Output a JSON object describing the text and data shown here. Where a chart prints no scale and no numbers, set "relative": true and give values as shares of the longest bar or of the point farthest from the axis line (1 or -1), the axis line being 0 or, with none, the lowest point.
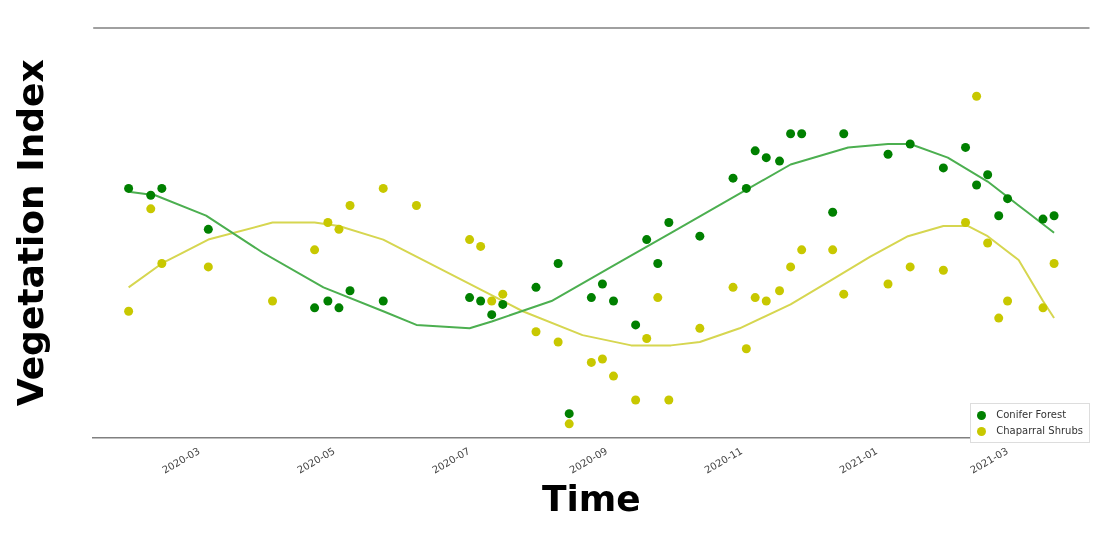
{
  "chart_data": {
    "type": "scatter",
    "xlabel": "Time",
    "ylabel": "Vegetation Index",
    "relative": true,
    "xlim": [
      "2020-01-13",
      "2021-04-07"
    ],
    "xticks": [
      "2020-03",
      "2020-05",
      "2020-07",
      "2020-09",
      "2020-11",
      "2021-01",
      "2021-03"
    ],
    "legend": "bottom right",
    "grid": false,
    "marker": "circle",
    "series": [
      {
        "name": "Conifer Forest",
        "color": "#008000",
        "x": [
          "2020-01-29",
          "2020-02-08",
          "2020-02-13",
          "2020-03-05",
          "2020-04-22",
          "2020-04-28",
          "2020-05-03",
          "2020-05-08",
          "2020-05-23",
          "2020-07-01",
          "2020-07-06",
          "2020-07-11",
          "2020-07-16",
          "2020-07-31",
          "2020-08-10",
          "2020-08-15",
          "2020-08-25",
          "2020-08-30",
          "2020-09-04",
          "2020-09-14",
          "2020-09-19",
          "2020-09-24",
          "2020-09-29",
          "2020-10-13",
          "2020-10-28",
          "2020-11-03",
          "2020-11-07",
          "2020-11-12",
          "2020-11-18",
          "2020-11-23",
          "2020-11-28",
          "2020-12-12",
          "2020-12-17",
          "2021-01-06",
          "2021-01-16",
          "2021-01-31",
          "2021-02-10",
          "2021-02-15",
          "2021-02-20",
          "2021-02-25",
          "2021-03-01",
          "2021-03-17",
          "2021-03-22"
        ],
        "values": [
          0.73,
          0.71,
          0.73,
          0.61,
          0.38,
          0.4,
          0.38,
          0.43,
          0.4,
          0.41,
          0.4,
          0.36,
          0.39,
          0.44,
          0.51,
          0.07,
          0.41,
          0.45,
          0.4,
          0.33,
          0.58,
          0.51,
          0.63,
          0.59,
          0.76,
          0.73,
          0.84,
          0.82,
          0.81,
          0.89,
          0.89,
          0.66,
          0.89,
          0.83,
          0.86,
          0.79,
          0.85,
          0.74,
          0.77,
          0.65,
          0.7,
          0.64,
          0.65
        ]
      },
      {
        "name": "Chaparral Shrubs",
        "color": "#c8c800",
        "x": [
          "2020-01-29",
          "2020-02-08",
          "2020-02-13",
          "2020-03-05",
          "2020-04-03",
          "2020-04-22",
          "2020-04-28",
          "2020-05-03",
          "2020-05-08",
          "2020-05-23",
          "2020-06-07",
          "2020-07-01",
          "2020-07-06",
          "2020-07-11",
          "2020-07-16",
          "2020-07-31",
          "2020-08-10",
          "2020-08-15",
          "2020-08-25",
          "2020-08-30",
          "2020-09-04",
          "2020-09-14",
          "2020-09-19",
          "2020-09-24",
          "2020-09-29",
          "2020-10-13",
          "2020-10-28",
          "2020-11-03",
          "2020-11-07",
          "2020-11-12",
          "2020-11-18",
          "2020-11-23",
          "2020-11-28",
          "2020-12-12",
          "2020-12-17",
          "2021-01-06",
          "2021-01-16",
          "2021-01-31",
          "2021-02-10",
          "2021-02-15",
          "2021-02-20",
          "2021-02-25",
          "2021-03-01",
          "2021-03-17",
          "2021-03-22"
        ],
        "values": [
          0.37,
          0.67,
          0.51,
          0.5,
          0.4,
          0.55,
          0.63,
          0.61,
          0.68,
          0.73,
          0.68,
          0.58,
          0.56,
          0.4,
          0.42,
          0.31,
          0.28,
          0.04,
          0.22,
          0.23,
          0.18,
          0.11,
          0.29,
          0.41,
          0.11,
          0.32,
          0.44,
          0.26,
          0.41,
          0.4,
          0.43,
          0.5,
          0.55,
          0.55,
          0.42,
          0.45,
          0.5,
          0.49,
          0.63,
          1,
          0.57,
          0.35,
          0.4,
          0.38,
          0.51
        ]
      },
      {
        "type": "line",
        "color": "#4caf50",
        "marker": "none",
        "x": [
          "2020-01-29",
          "2020-02-10",
          "2020-03-04",
          "2020-03-30",
          "2020-04-26",
          "2020-05-23",
          "2020-06-07",
          "2020-07-01",
          "2020-07-11",
          "2020-08-07",
          "2020-09-03",
          "2020-09-30",
          "2020-10-27",
          "2020-11-23",
          "2020-12-19",
          "2021-01-06",
          "2021-01-16",
          "2021-02-02",
          "2021-02-20",
          "2021-03-10",
          "2021-03-22"
        ],
        "values": [
          0.72,
          0.71,
          0.65,
          0.54,
          0.44,
          0.37,
          0.33,
          0.32,
          0.34,
          0.4,
          0.5,
          0.6,
          0.7,
          0.8,
          0.85,
          0.86,
          0.86,
          0.82,
          0.75,
          0.66,
          0.6
        ]
      },
      {
        "type": "line",
        "color": "#d6d650",
        "marker": "none",
        "x": [
          "2020-01-29",
          "2020-02-13",
          "2020-03-05",
          "2020-04-03",
          "2020-04-22",
          "2020-05-03",
          "2020-05-23",
          "2020-06-07",
          "2020-07-01",
          "2020-07-25",
          "2020-08-21",
          "2020-09-12",
          "2020-09-30",
          "2020-10-13",
          "2020-10-31",
          "2020-11-23",
          "2020-12-11",
          "2020-12-29",
          "2021-01-15",
          "2021-01-31",
          "2021-02-11",
          "2021-02-20",
          "2021-03-06",
          "2021-03-17",
          "2021-03-22"
        ],
        "values": [
          0.44,
          0.51,
          0.58,
          0.63,
          0.63,
          0.62,
          0.58,
          0.53,
          0.45,
          0.37,
          0.3,
          0.27,
          0.27,
          0.28,
          0.32,
          0.39,
          0.46,
          0.53,
          0.59,
          0.62,
          0.62,
          0.59,
          0.52,
          0.4,
          0.35
        ]
      }
    ]
  }
}
